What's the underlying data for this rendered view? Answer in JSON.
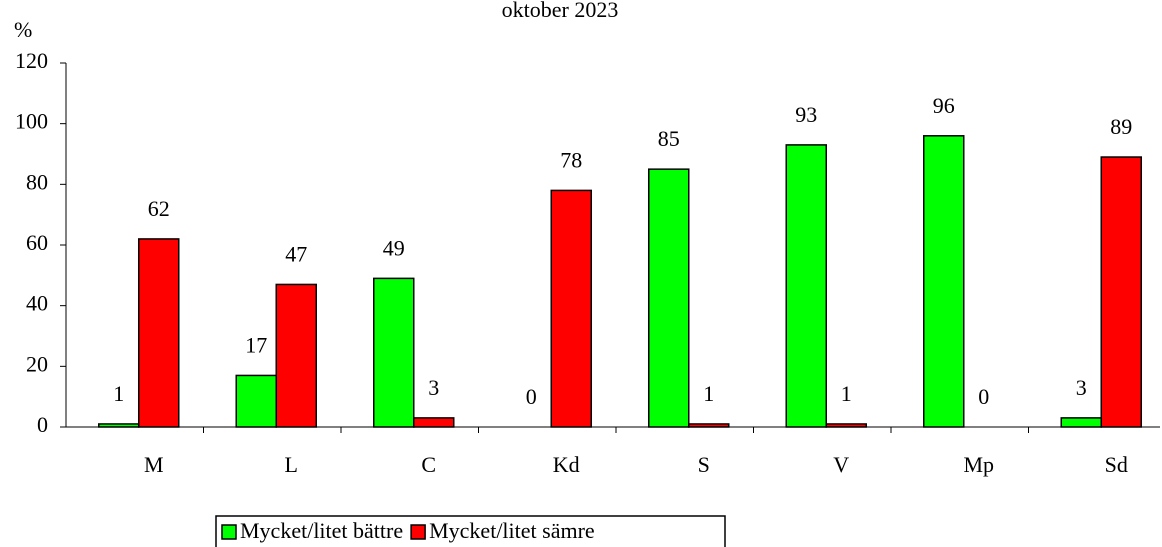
{
  "chart_data": {
    "type": "bar",
    "title": "oktober 2023",
    "y_label": "%",
    "categories": [
      "M",
      "L",
      "C",
      "Kd",
      "S",
      "V",
      "Mp",
      "Sd"
    ],
    "series": [
      {
        "name": "Mycket/litet bättre",
        "color": "#00ff00",
        "values": [
          1,
          17,
          49,
          0,
          85,
          93,
          96,
          3
        ]
      },
      {
        "name": "Mycket/litet sämre",
        "color": "#ff0000",
        "values": [
          62,
          47,
          3,
          78,
          1,
          1,
          0,
          89
        ]
      }
    ],
    "ylim": [
      0,
      120
    ],
    "yticks": [
      0,
      20,
      40,
      60,
      80,
      100,
      120
    ],
    "legend": "bottom"
  }
}
